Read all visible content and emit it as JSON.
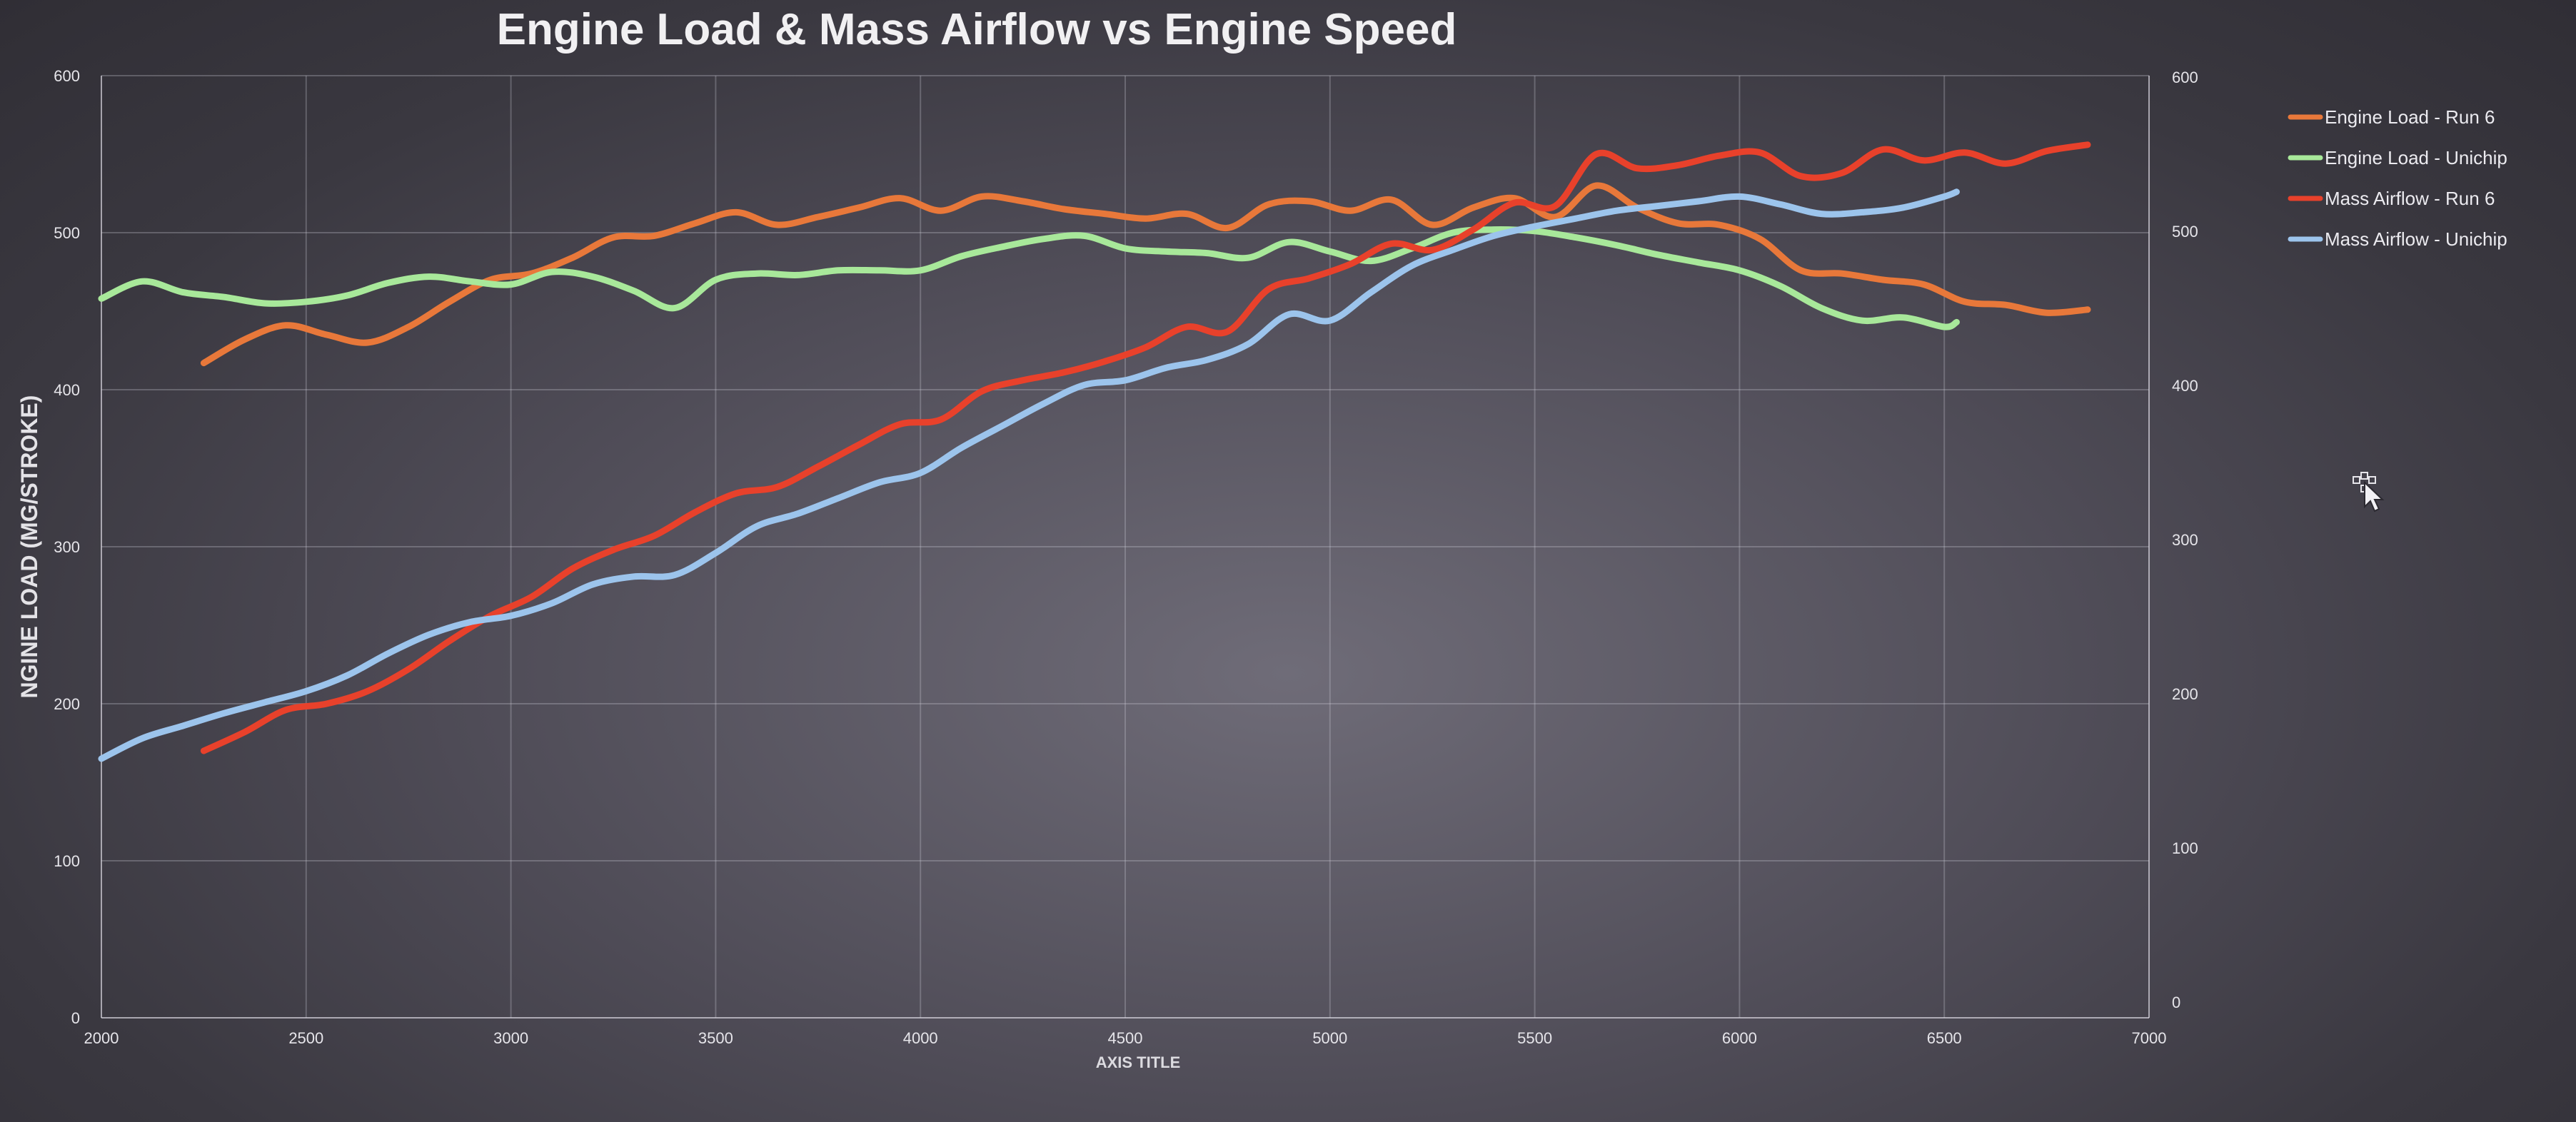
{
  "chart_data": {
    "type": "line",
    "title": "Engine Load & Mass Airflow vs Engine Speed",
    "xlabel": "AXIS TITLE",
    "ylabel": "NGINE LOAD (MG/STROKE)",
    "xlim": [
      2000,
      7000
    ],
    "ylim": [
      0,
      600
    ],
    "y2lim": [
      0,
      600
    ],
    "x_ticks": [
      2000,
      2500,
      3000,
      3500,
      4000,
      4500,
      5000,
      5500,
      6000,
      6500,
      7000
    ],
    "y_ticks": [
      0,
      100,
      200,
      300,
      400,
      500,
      600
    ],
    "y2_ticks": [
      0,
      100,
      200,
      300,
      400,
      500,
      600
    ],
    "grid": true,
    "legend_position": "right",
    "series": [
      {
        "name": "Engine Load - Run 6",
        "color": "#e8783a",
        "x": [
          2250,
          2350,
          2450,
          2550,
          2650,
          2750,
          2850,
          2950,
          3050,
          3150,
          3250,
          3350,
          3450,
          3550,
          3650,
          3750,
          3850,
          3950,
          4050,
          4150,
          4250,
          4350,
          4450,
          4550,
          4650,
          4750,
          4850,
          4950,
          5050,
          5150,
          5250,
          5350,
          5450,
          5550,
          5650,
          5750,
          5850,
          5950,
          6050,
          6150,
          6250,
          6350,
          6450,
          6550,
          6650,
          6750,
          6850
        ],
        "values": [
          417,
          432,
          441,
          435,
          430,
          440,
          456,
          470,
          474,
          484,
          497,
          498,
          506,
          513,
          505,
          510,
          516,
          522,
          514,
          523,
          520,
          515,
          512,
          509,
          512,
          503,
          518,
          520,
          514,
          521,
          505,
          516,
          522,
          510,
          530,
          516,
          506,
          505,
          496,
          476,
          474,
          470,
          467,
          456,
          454,
          449,
          451
        ]
      },
      {
        "name": "Engine Load - Unichip",
        "color": "#a8e89a",
        "x": [
          2000,
          2100,
          2200,
          2300,
          2400,
          2500,
          2600,
          2700,
          2800,
          2900,
          3000,
          3100,
          3200,
          3300,
          3400,
          3500,
          3600,
          3700,
          3800,
          3900,
          4000,
          4100,
          4200,
          4300,
          4400,
          4500,
          4600,
          4700,
          4800,
          4900,
          5000,
          5100,
          5200,
          5300,
          5400,
          5500,
          5600,
          5700,
          5800,
          5900,
          6000,
          6100,
          6200,
          6300,
          6400,
          6500,
          6530
        ],
        "values": [
          458,
          469,
          462,
          459,
          455,
          456,
          460,
          468,
          472,
          469,
          467,
          475,
          472,
          463,
          452,
          470,
          474,
          473,
          476,
          476,
          476,
          485,
          491,
          496,
          498,
          490,
          488,
          487,
          484,
          494,
          488,
          482,
          490,
          500,
          502,
          501,
          497,
          492,
          486,
          481,
          476,
          466,
          452,
          444,
          446,
          440,
          443
        ]
      },
      {
        "name": "Mass Airflow - Run 6",
        "color": "#e8412b",
        "x": [
          2250,
          2350,
          2450,
          2550,
          2650,
          2750,
          2850,
          2950,
          3050,
          3150,
          3250,
          3350,
          3450,
          3550,
          3650,
          3750,
          3850,
          3950,
          4050,
          4150,
          4250,
          4350,
          4450,
          4550,
          4650,
          4750,
          4850,
          4950,
          5050,
          5150,
          5250,
          5350,
          5450,
          5550,
          5650,
          5750,
          5850,
          5950,
          6050,
          6150,
          6250,
          6350,
          6450,
          6550,
          6650,
          6750,
          6850
        ],
        "values": [
          170,
          182,
          196,
          200,
          208,
          222,
          240,
          256,
          268,
          286,
          298,
          307,
          322,
          334,
          338,
          351,
          365,
          378,
          381,
          399,
          406,
          411,
          418,
          427,
          440,
          437,
          464,
          471,
          480,
          493,
          489,
          502,
          519,
          517,
          550,
          541,
          543,
          549,
          551,
          536,
          538,
          553,
          546,
          551,
          544,
          552,
          556
        ]
      },
      {
        "name": "Mass Airflow - Unichip",
        "color": "#9cc4ec",
        "x": [
          2000,
          2100,
          2200,
          2300,
          2400,
          2500,
          2600,
          2700,
          2800,
          2900,
          3000,
          3100,
          3200,
          3300,
          3400,
          3500,
          3600,
          3700,
          3800,
          3900,
          4000,
          4100,
          4200,
          4300,
          4400,
          4500,
          4600,
          4700,
          4800,
          4900,
          5000,
          5100,
          5200,
          5300,
          5400,
          5500,
          5600,
          5700,
          5800,
          5900,
          6000,
          6100,
          6200,
          6300,
          6400,
          6500,
          6530
        ],
        "values": [
          165,
          178,
          186,
          194,
          201,
          208,
          218,
          232,
          244,
          252,
          256,
          264,
          276,
          281,
          282,
          296,
          313,
          321,
          331,
          341,
          347,
          363,
          377,
          391,
          403,
          406,
          414,
          419,
          429,
          448,
          444,
          462,
          479,
          489,
          498,
          504,
          509,
          514,
          517,
          520,
          523,
          518,
          512,
          513,
          516,
          523,
          526
        ]
      }
    ]
  }
}
